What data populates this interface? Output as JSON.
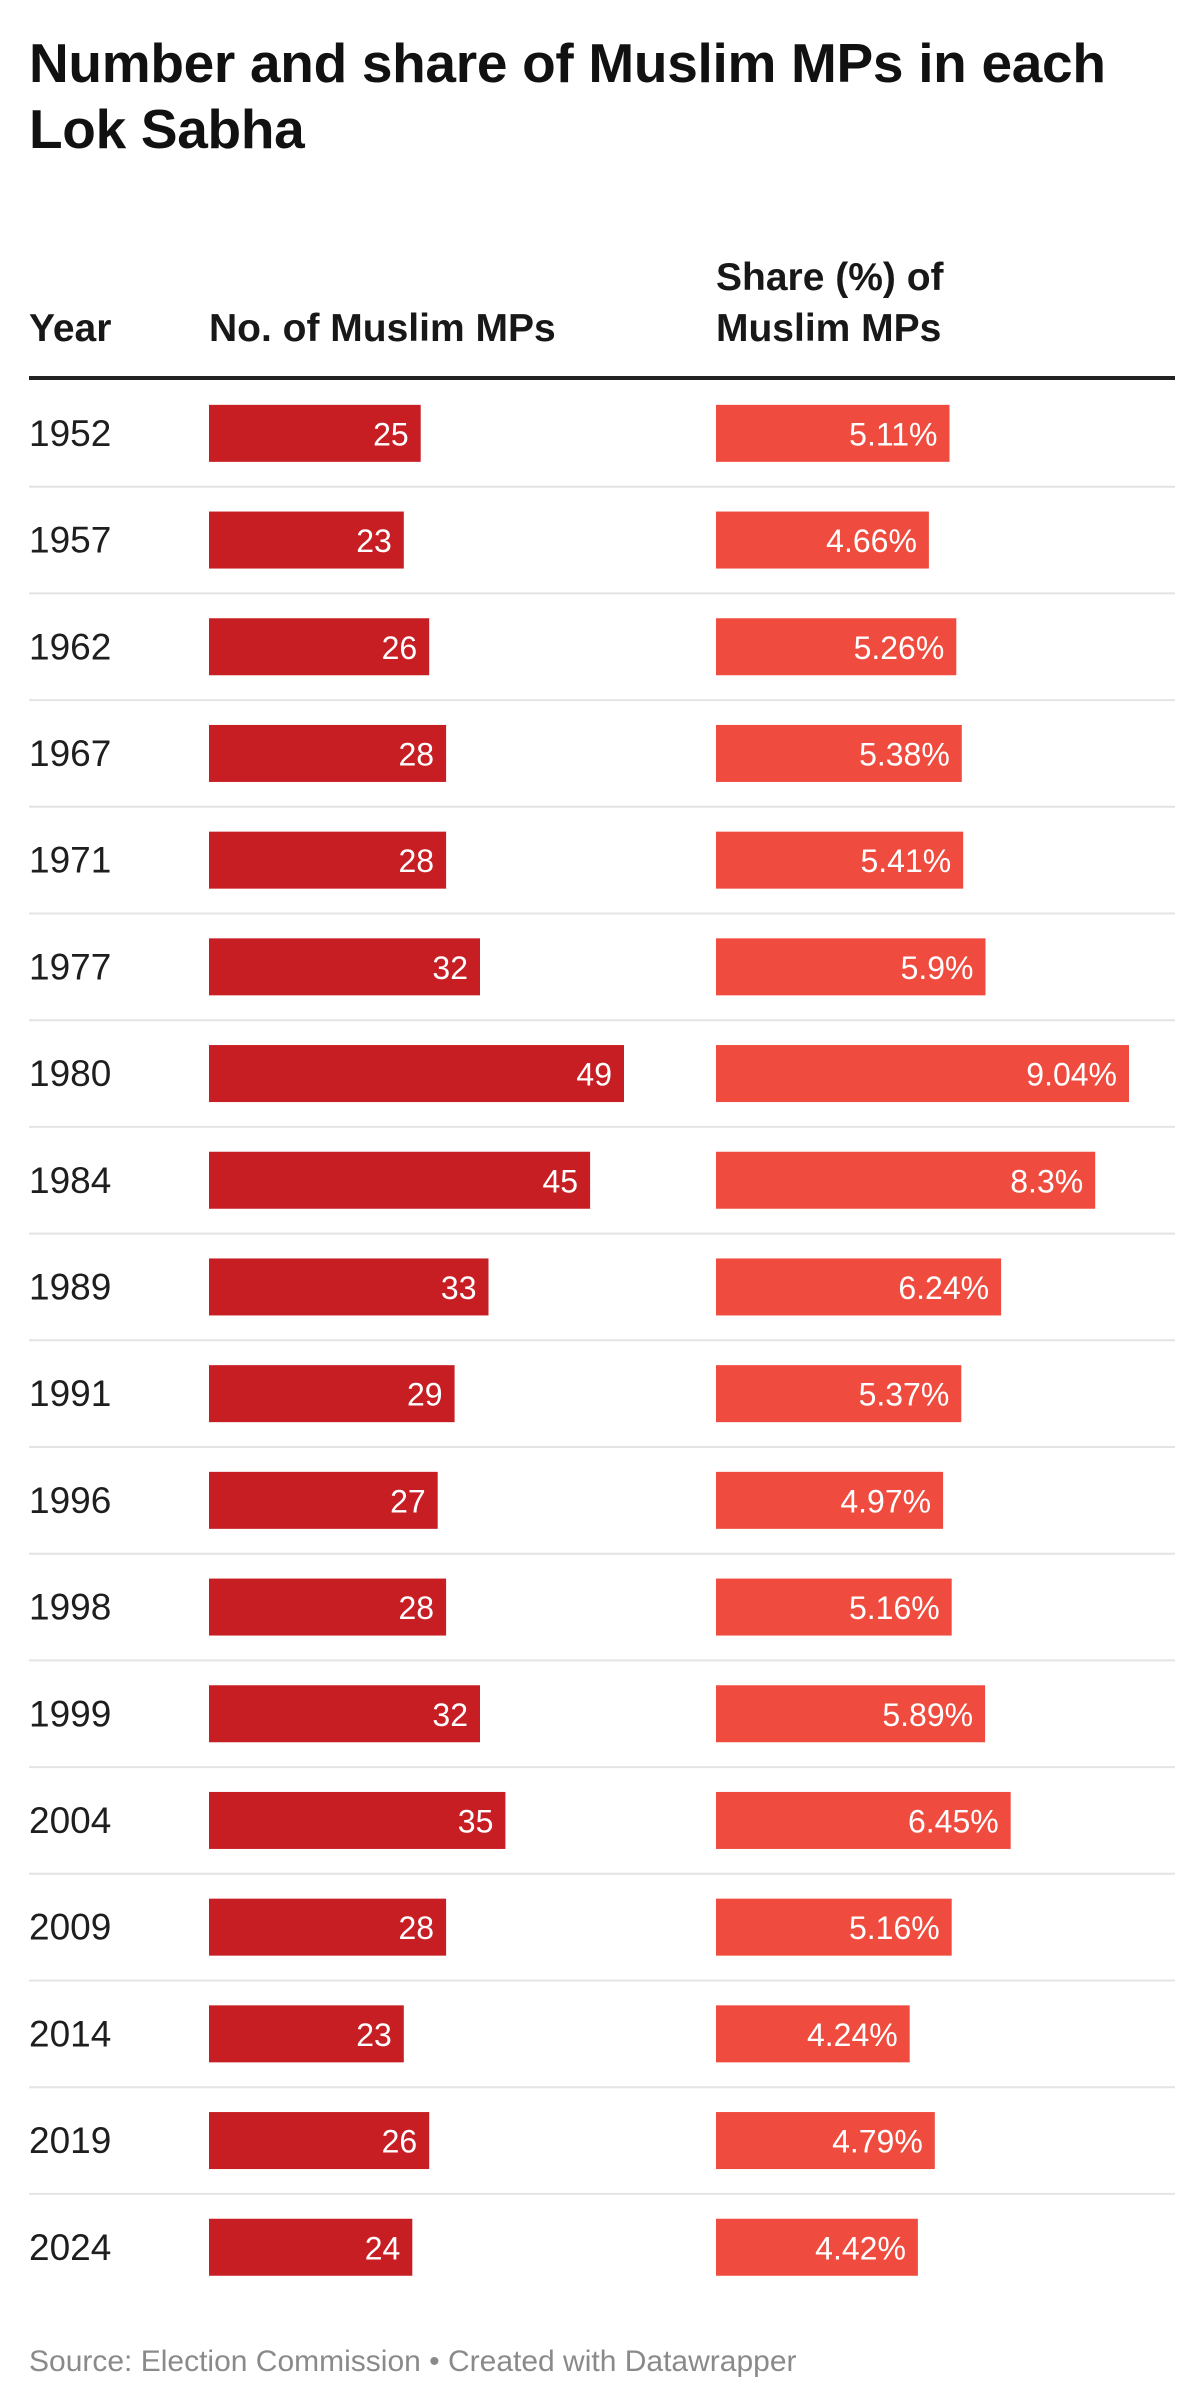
{
  "chart_data": {
    "type": "table",
    "title": "Number and share of Muslim MPs in each Lok Sabha",
    "columns": [
      "Year",
      "No. of Muslim MPs",
      "Share (%) of Muslim MPs"
    ],
    "categories": [
      "1952",
      "1957",
      "1962",
      "1967",
      "1971",
      "1977",
      "1980",
      "1984",
      "1989",
      "1991",
      "1996",
      "1998",
      "1999",
      "2004",
      "2009",
      "2014",
      "2019",
      "2024"
    ],
    "series": [
      {
        "name": "No. of Muslim MPs",
        "values": [
          25,
          23,
          26,
          28,
          28,
          32,
          49,
          45,
          33,
          29,
          27,
          28,
          32,
          35,
          28,
          23,
          26,
          24
        ],
        "labels": [
          "25",
          "23",
          "26",
          "28",
          "28",
          "32",
          "49",
          "45",
          "33",
          "29",
          "27",
          "28",
          "32",
          "35",
          "28",
          "23",
          "26",
          "24"
        ],
        "color": "#c71e24",
        "max": 49
      },
      {
        "name": "Share (%) of Muslim MPs",
        "values": [
          5.11,
          4.66,
          5.26,
          5.38,
          5.41,
          5.9,
          9.04,
          8.3,
          6.24,
          5.37,
          4.97,
          5.16,
          5.89,
          6.45,
          5.16,
          4.24,
          4.79,
          4.42
        ],
        "labels": [
          "5.11%",
          "4.66%",
          "5.26%",
          "5.38%",
          "5.41%",
          "5.9%",
          "9.04%",
          "8.3%",
          "6.24%",
          "5.37%",
          "4.97%",
          "5.16%",
          "5.89%",
          "6.45%",
          "5.16%",
          "4.24%",
          "4.79%",
          "4.42%"
        ],
        "color": "#ef4c3f",
        "max": 9.04
      }
    ],
    "source": "Source: Election Commission • Created with Datawrapper"
  },
  "header": {
    "year": "Year",
    "count": "No. of Muslim MPs",
    "share_line1": "Share (%) of",
    "share_line2": "Muslim MPs"
  }
}
